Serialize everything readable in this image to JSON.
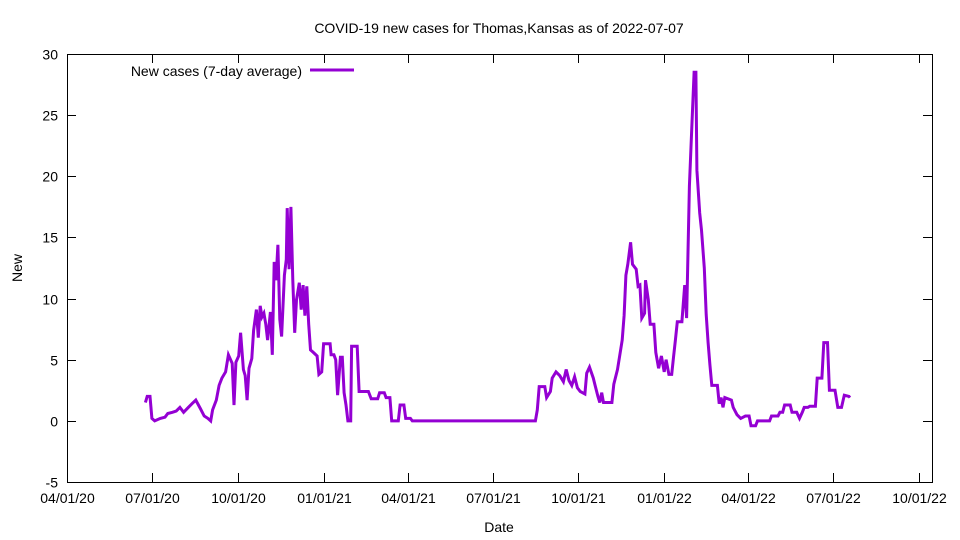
{
  "chart_data": {
    "type": "line",
    "title": "COVID-19 new cases for Thomas,Kansas as of 2022-07-07",
    "xlabel": "Date",
    "ylabel": "New",
    "x_unit": "days since 04/01/20",
    "xlim": [
      0,
      927
    ],
    "ylim": [
      -5,
      30
    ],
    "yticks": [
      -5,
      0,
      5,
      10,
      15,
      20,
      25,
      30
    ],
    "xticks": [
      {
        "day": 0,
        "label": "04/01/20"
      },
      {
        "day": 91,
        "label": "07/01/20"
      },
      {
        "day": 183,
        "label": "10/01/20"
      },
      {
        "day": 275,
        "label": "01/01/21"
      },
      {
        "day": 365,
        "label": "04/01/21"
      },
      {
        "day": 456,
        "label": "07/01/21"
      },
      {
        "day": 548,
        "label": "10/01/21"
      },
      {
        "day": 640,
        "label": "01/01/22"
      },
      {
        "day": 730,
        "label": "04/01/22"
      },
      {
        "day": 821,
        "label": "07/01/22"
      },
      {
        "day": 913,
        "label": "10/01/22"
      }
    ],
    "grid": false,
    "legend_position": "top-left",
    "series": [
      {
        "name": "New cases (7-day average)",
        "color": "#9400d3",
        "x": [
          84,
          86,
          89,
          91,
          94,
          100,
          105,
          108,
          113,
          117,
          121,
          125,
          130,
          134,
          138,
          143,
          147,
          151,
          154,
          156,
          160,
          163,
          166,
          170,
          173,
          177,
          179,
          181,
          184,
          186,
          189,
          191,
          193,
          195,
          198,
          200,
          203,
          205,
          207,
          209,
          211,
          213,
          215,
          218,
          220,
          222,
          224,
          226,
          228,
          230,
          233,
          235,
          236,
          238,
          240,
          242,
          244,
          246,
          249,
          251,
          253,
          255,
          257,
          259,
          261,
          264,
          268,
          270,
          273,
          275,
          282,
          283,
          286,
          288,
          290,
          293,
          295,
          297,
          299,
          301,
          304,
          305,
          311,
          313,
          323,
          326,
          333,
          335,
          340,
          342,
          346,
          348,
          355,
          357,
          361,
          363,
          368,
          370,
          502,
          504,
          506,
          512,
          514,
          518,
          520,
          524,
          528,
          532,
          535,
          538,
          541,
          544,
          547,
          550,
          555,
          557,
          560,
          564,
          566,
          569,
          571,
          573,
          575,
          584,
          586,
          590,
          595,
          597,
          599,
          601,
          604,
          606,
          610,
          612,
          614,
          616,
          619,
          620,
          623,
          625,
          629,
          631,
          634,
          637,
          640,
          642,
          645,
          648,
          650,
          652,
          654,
          659,
          662,
          664,
          667,
          669,
          672,
          674,
          675,
          678,
          680,
          683,
          685,
          687,
          689,
          691,
          697,
          699,
          701,
          703,
          705,
          712,
          714,
          718,
          722,
          727,
          731,
          733,
          738,
          740,
          753,
          755,
          762,
          764,
          767,
          769,
          775,
          777,
          782,
          785,
          788,
          790,
          794,
          796,
          802,
          804,
          809,
          811,
          815,
          817,
          823,
          826,
          830,
          833,
          838,
          839
        ],
        "y": [
          1.5,
          2.0,
          2.0,
          0.2,
          0,
          0.2,
          0.3,
          0.6,
          0.7,
          0.8,
          1.1,
          0.7,
          1.1,
          1.4,
          1.7,
          1.0,
          0.4,
          0.2,
          0,
          0.9,
          1.7,
          2.9,
          3.5,
          4.0,
          5.4,
          4.7,
          1.3,
          4.8,
          5.3,
          7.2,
          4.2,
          3.7,
          1.7,
          4.3,
          5.1,
          7.4,
          9.1,
          6.8,
          9.4,
          8.5,
          8.8,
          7.9,
          6.6,
          8.9,
          5.4,
          13.0,
          11.5,
          14.4,
          8.3,
          6.9,
          11.9,
          13.2,
          17.4,
          12.4,
          17.5,
          11.5,
          7.2,
          9.9,
          11.3,
          9.1,
          11.1,
          8.6,
          11.0,
          7.9,
          5.8,
          5.6,
          5.3,
          3.8,
          4.0,
          6.3,
          6.3,
          5.4,
          5.4,
          5.0,
          2.1,
          5.2,
          5.2,
          2.3,
          1.3,
          0,
          0,
          6.1,
          6.1,
          2.4,
          2.4,
          1.8,
          1.8,
          2.3,
          2.3,
          1.9,
          1.9,
          0,
          0,
          1.3,
          1.3,
          0.2,
          0.2,
          0,
          0,
          0.9,
          2.8,
          2.8,
          1.9,
          2.4,
          3.5,
          4.0,
          3.7,
          3.2,
          4.2,
          3.3,
          2.9,
          3.6,
          2.7,
          2.4,
          2.2,
          3.9,
          4.4,
          3.5,
          2.9,
          2.0,
          1.5,
          2.3,
          1.5,
          1.5,
          3.0,
          4.2,
          6.6,
          8.6,
          11.9,
          12.8,
          14.6,
          12.8,
          12.4,
          11.0,
          11.1,
          8.4,
          8.8,
          11.5,
          9.9,
          7.9,
          7.9,
          5.6,
          4.3,
          5.3,
          4.0,
          5.0,
          3.8,
          3.8,
          5.2,
          6.6,
          8.1,
          8.1,
          11.1,
          8.4,
          19.2,
          23.0,
          28.5,
          28.5,
          20.5,
          17.0,
          15.6,
          12.5,
          8.7,
          6.4,
          4.6,
          2.9,
          2.9,
          1.4,
          1.9,
          1.1,
          1.9,
          1.7,
          1.1,
          0.5,
          0.2,
          0.4,
          0.4,
          -0.4,
          -0.4,
          0,
          0,
          0.4,
          0.4,
          0.7,
          0.7,
          1.3,
          1.3,
          0.7,
          0.7,
          0.2,
          0.7,
          1.1,
          1.1,
          1.2,
          1.2,
          3.5,
          3.5,
          6.4,
          6.4,
          2.5,
          2.5,
          1.1,
          1.1,
          2.1,
          2.0,
          1.9
        ]
      }
    ]
  }
}
